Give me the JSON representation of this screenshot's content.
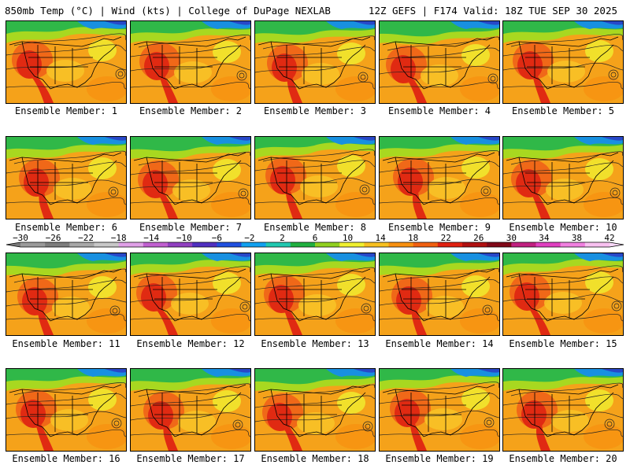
{
  "header": {
    "left": "850mb Temp (°C) | Wind (kts) | College of DuPage NEXLAB",
    "right": "12Z GEFS | F174 Valid: 18Z TUE SEP 30 2025"
  },
  "panels": [
    {
      "label": "Ensemble Member: 1"
    },
    {
      "label": "Ensemble Member: 2"
    },
    {
      "label": "Ensemble Member: 3"
    },
    {
      "label": "Ensemble Member: 4"
    },
    {
      "label": "Ensemble Member: 5"
    },
    {
      "label": "Ensemble Member: 6"
    },
    {
      "label": "Ensemble Member: 7"
    },
    {
      "label": "Ensemble Member: 8"
    },
    {
      "label": "Ensemble Member: 9"
    },
    {
      "label": "Ensemble Member: 10"
    },
    {
      "label": "Ensemble Member: 11"
    },
    {
      "label": "Ensemble Member: 12"
    },
    {
      "label": "Ensemble Member: 13"
    },
    {
      "label": "Ensemble Member: 14"
    },
    {
      "label": "Ensemble Member: 15"
    },
    {
      "label": "Ensemble Member: 16"
    },
    {
      "label": "Ensemble Member: 17"
    },
    {
      "label": "Ensemble Member: 18"
    },
    {
      "label": "Ensemble Member: 19"
    },
    {
      "label": "Ensemble Member: 20"
    }
  ],
  "colorbar": {
    "ticks": [
      "−30",
      "−26",
      "−22",
      "−18",
      "−14",
      "−10",
      "−6",
      "−2",
      "2",
      "6",
      "10",
      "14",
      "18",
      "22",
      "26",
      "30",
      "34",
      "38",
      "42"
    ],
    "colors": [
      "#9a9a9a",
      "#7d7d7d",
      "#a8a8a8",
      "#c8c8c8",
      "#e0a0e8",
      "#c060d0",
      "#9040c0",
      "#5030c0",
      "#2050e0",
      "#10a0f0",
      "#20c8b0",
      "#20b040",
      "#90d020",
      "#f0f030",
      "#f8c020",
      "#f89010",
      "#f06010",
      "#e02010",
      "#b01010",
      "#800818",
      "#c02080",
      "#e040c0",
      "#f080e0",
      "#f8c0f0"
    ]
  }
}
